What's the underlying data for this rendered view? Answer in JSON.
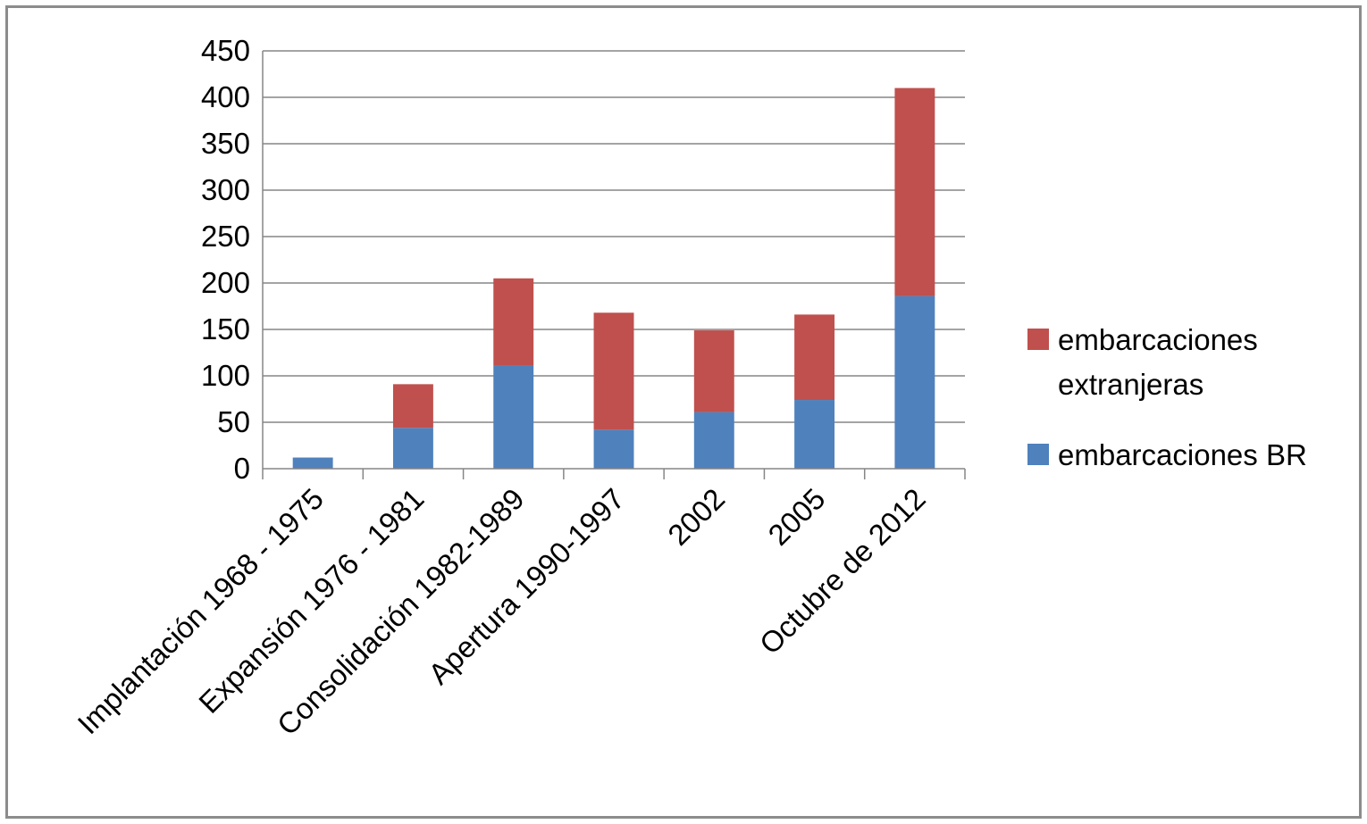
{
  "chart_data": {
    "type": "bar",
    "stacked": true,
    "categories": [
      "Implantación 1968 - 1975",
      "Expansión 1976 - 1981",
      "Consolidación 1982-1989",
      "Apertura 1990-1997",
      "2002",
      "2005",
      "Octubre de 2012"
    ],
    "series": [
      {
        "name": "embarcaciones BR",
        "color": "#4f81bd",
        "values": [
          12,
          44,
          111,
          42,
          61,
          74,
          186
        ]
      },
      {
        "name": "embarcaciones extranjeras",
        "color": "#c0504d",
        "values": [
          0,
          47,
          94,
          126,
          88,
          92,
          224
        ]
      }
    ],
    "ylim": [
      0,
      450
    ],
    "yticks": [
      0,
      50,
      100,
      150,
      200,
      250,
      300,
      350,
      400,
      450
    ],
    "grid": true,
    "legend": {
      "position": "right",
      "entries": [
        {
          "label_lines": [
            "embarcaciones",
            "extranjeras"
          ],
          "color": "#c0504d"
        },
        {
          "label_lines": [
            "embarcaciones BR"
          ],
          "color": "#4f81bd"
        }
      ]
    },
    "title": "",
    "xlabel": "",
    "ylabel": ""
  }
}
